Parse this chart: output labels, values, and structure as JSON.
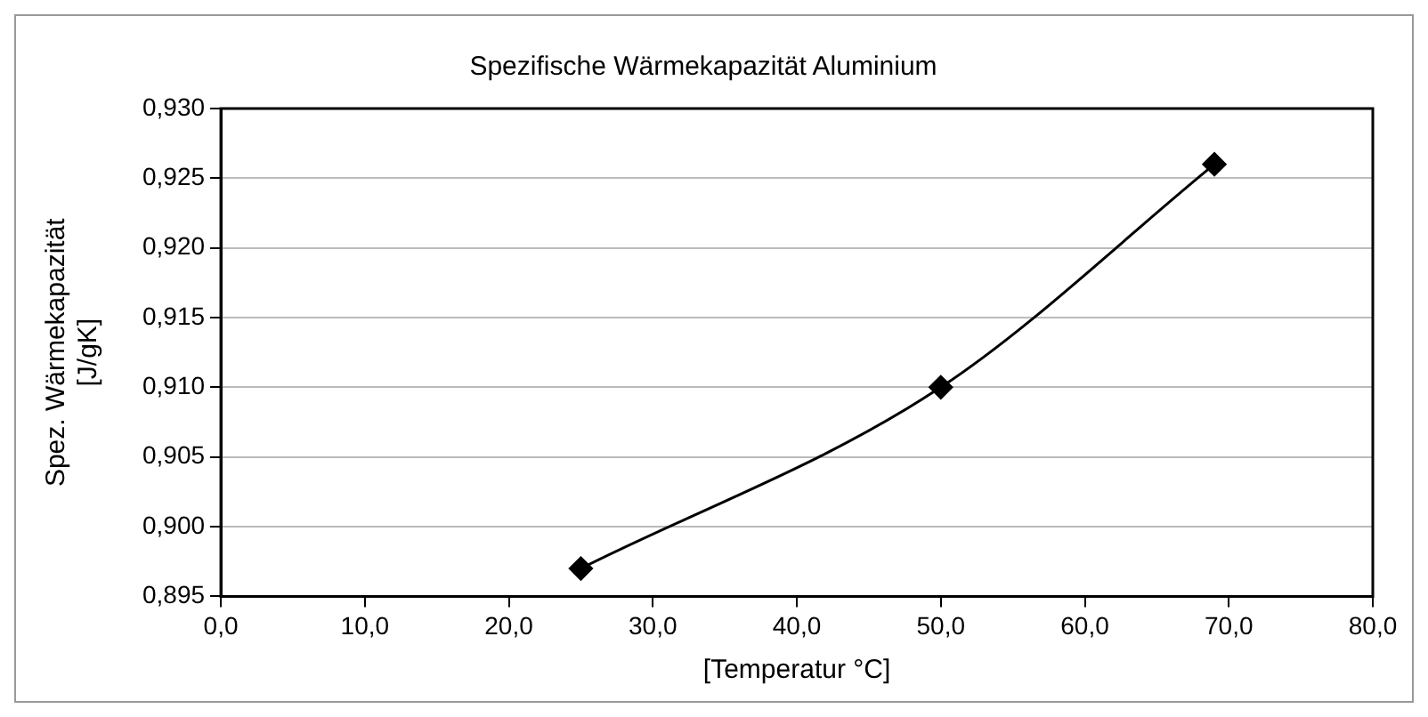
{
  "chart_data": {
    "type": "line",
    "title": "Spezifische Wärmekapazität Aluminium",
    "xlabel": "[Temperatur °C]",
    "ylabel": "Spez. Wärmekapazität\n[J/gK]",
    "x": [
      25,
      50,
      69
    ],
    "series": [
      {
        "color": "#000000",
        "values": [
          0.897,
          0.91,
          0.926
        ]
      }
    ],
    "xlim": [
      0,
      80
    ],
    "xticks": [
      {
        "value": 0,
        "label": "0,0"
      },
      {
        "value": 10,
        "label": "10,0"
      },
      {
        "value": 20,
        "label": "20,0"
      },
      {
        "value": 30,
        "label": "30,0"
      },
      {
        "value": 40,
        "label": "40,0"
      },
      {
        "value": 50,
        "label": "50,0"
      },
      {
        "value": 60,
        "label": "60,0"
      },
      {
        "value": 70,
        "label": "70,0"
      },
      {
        "value": 80,
        "label": "80,0"
      }
    ],
    "ylim": [
      0.895,
      0.93
    ],
    "yticks": [
      {
        "value": 0.895,
        "label": "0,895"
      },
      {
        "value": 0.9,
        "label": "0,900"
      },
      {
        "value": 0.905,
        "label": "0,905"
      },
      {
        "value": 0.91,
        "label": "0,910"
      },
      {
        "value": 0.915,
        "label": "0,915"
      },
      {
        "value": 0.92,
        "label": "0,920"
      },
      {
        "value": 0.925,
        "label": "0,925"
      },
      {
        "value": 0.93,
        "label": "0,930"
      }
    ],
    "grid": "y",
    "legend": false,
    "marker": "diamond",
    "line_style": "solid"
  }
}
